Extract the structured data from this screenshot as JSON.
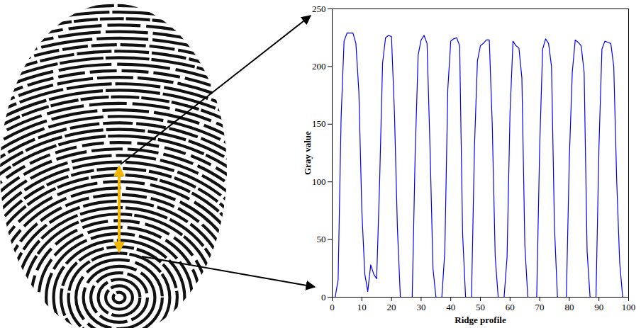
{
  "chart_data": {
    "type": "line",
    "x_label": "Ridge profile",
    "y_label": "Gray value",
    "color": "#0000ff",
    "x": [
      1,
      2,
      3,
      4,
      5,
      6,
      7,
      8,
      9,
      10,
      11,
      12,
      13,
      14,
      15,
      16,
      17,
      18,
      19,
      20,
      21,
      22,
      23,
      24,
      25,
      26,
      27,
      28,
      29,
      30,
      31,
      32,
      33,
      34,
      35,
      36,
      37,
      38,
      39,
      40,
      41,
      42,
      43,
      44,
      45,
      46,
      47,
      48,
      49,
      50,
      51,
      52,
      53,
      54,
      55,
      56,
      57,
      58,
      59,
      60,
      61,
      62,
      63,
      64,
      65,
      66,
      67,
      68,
      69,
      70,
      71,
      72,
      73,
      74,
      75,
      76,
      77,
      78,
      79,
      80,
      81,
      82,
      83,
      84,
      85,
      86,
      87,
      88,
      89,
      90,
      91,
      92,
      93,
      94,
      95,
      96,
      97,
      98
    ],
    "values": [
      0,
      15,
      155,
      222,
      229,
      229,
      229,
      220,
      178,
      75,
      20,
      5,
      28,
      20,
      16,
      100,
      203,
      225,
      227,
      226,
      160,
      60,
      0,
      0,
      0,
      0,
      0,
      125,
      210,
      223,
      227,
      220,
      130,
      25,
      0,
      0,
      0,
      40,
      180,
      222,
      224,
      225,
      218,
      55,
      0,
      0,
      0,
      130,
      205,
      218,
      220,
      223,
      223,
      150,
      35,
      0,
      0,
      0,
      35,
      160,
      222,
      218,
      216,
      190,
      45,
      0,
      0,
      0,
      0,
      130,
      215,
      224,
      220,
      200,
      60,
      0,
      0,
      0,
      0,
      120,
      195,
      223,
      221,
      218,
      195,
      40,
      0,
      0,
      0,
      130,
      215,
      222,
      221,
      220,
      200,
      100,
      30,
      0
    ],
    "xlim": [
      0,
      100
    ],
    "xticks": [
      0,
      10,
      20,
      30,
      40,
      50,
      60,
      70,
      80,
      90,
      100
    ],
    "ylim": [
      0,
      250
    ],
    "yticks": [
      0,
      50,
      100,
      150,
      200,
      250
    ],
    "grid": false
  }
}
